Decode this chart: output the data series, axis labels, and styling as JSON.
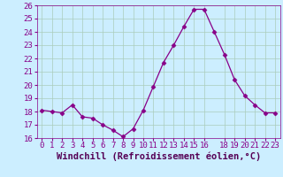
{
  "x": [
    0,
    1,
    2,
    3,
    4,
    5,
    6,
    7,
    8,
    9,
    10,
    11,
    12,
    13,
    14,
    15,
    16,
    17,
    18,
    19,
    20,
    21,
    22,
    23
  ],
  "y": [
    18.1,
    18.0,
    17.9,
    18.5,
    17.6,
    17.5,
    17.0,
    16.6,
    16.1,
    16.7,
    18.1,
    19.9,
    21.7,
    23.0,
    24.4,
    25.7,
    25.7,
    24.0,
    22.3,
    20.4,
    19.2,
    18.5,
    17.9,
    17.9
  ],
  "line_color": "#880088",
  "marker": "D",
  "marker_size": 2.5,
  "bg_color": "#cceeff",
  "grid_color": "#aaccbb",
  "xlabel": "Windchill (Refroidissement éolien,°C)",
  "xlabel_color": "#550055",
  "tick_color": "#880088",
  "ylim": [
    16,
    26
  ],
  "yticks": [
    16,
    17,
    18,
    19,
    20,
    21,
    22,
    23,
    24,
    25,
    26
  ],
  "xticks": [
    0,
    1,
    2,
    3,
    4,
    5,
    6,
    7,
    8,
    9,
    10,
    11,
    12,
    13,
    14,
    15,
    16,
    18,
    19,
    20,
    21,
    22,
    23
  ],
  "xlabels": [
    "0",
    "1",
    "2",
    "3",
    "4",
    "5",
    "6",
    "7",
    "8",
    "9",
    "10",
    "11",
    "12",
    "13",
    "14",
    "15",
    "16",
    "18",
    "19",
    "20",
    "21",
    "22",
    "23"
  ],
  "tick_label_size": 6.5,
  "xlabel_size": 7.5
}
